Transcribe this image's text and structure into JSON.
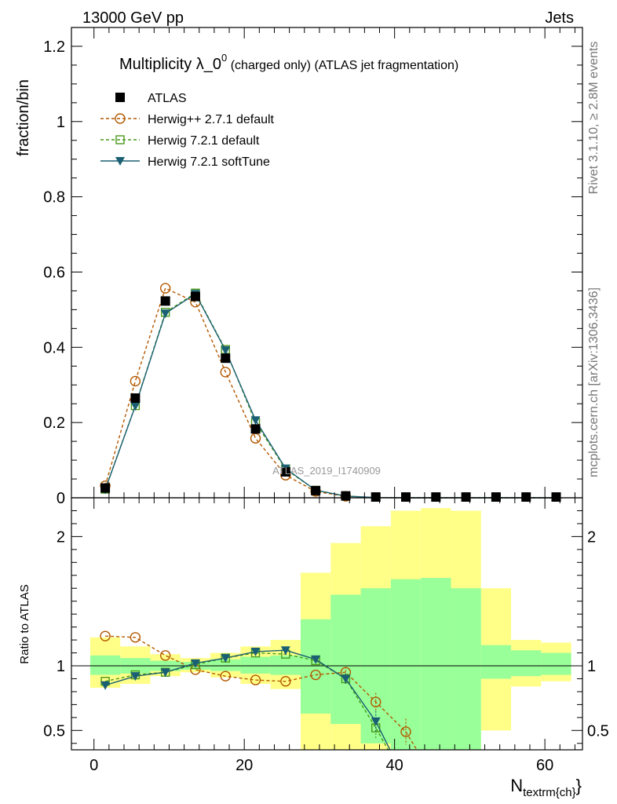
{
  "header": {
    "left": "13000 GeV pp",
    "right": "Jets"
  },
  "side_labels": {
    "top": "Rivet 3.1.10, ≥ 2.8M events",
    "bottom": "mcplots.cern.ch [arXiv:1306.3436]"
  },
  "watermark": "ATLAS_2019_I1740909",
  "chart_data": [
    {
      "type": "line",
      "panel": "main",
      "title_main": "Multiplicity λ_0",
      "title_sup": "0",
      "title_rest": " (charged only) (ATLAS jet fragmentation)",
      "xlabel_main": "N",
      "xlabel_sub": "textrm{ch}",
      "xlabel_close": "}",
      "ylabel": "fraction/bin",
      "xlim": [
        -3,
        65
      ],
      "ylim": [
        0,
        1.25
      ],
      "x_ticks": [
        0,
        20,
        40,
        60
      ],
      "x_tick_labels": [
        "0",
        "20",
        "40",
        "60"
      ],
      "y_ticks": [
        0,
        0.2,
        0.4,
        0.6,
        0.8,
        1,
        1.2
      ],
      "y_tick_labels": [
        "0",
        "0.2",
        "0.4",
        "0.6",
        "0.8",
        "1",
        "1.2"
      ],
      "grid": false,
      "legend_position": "top-left",
      "x": [
        1.5,
        5.5,
        9.5,
        13.5,
        17.5,
        21.5,
        25.5,
        29.5,
        33.5,
        37.5,
        41.5,
        45.5,
        49.5,
        53.5,
        57.5,
        61.5
      ],
      "series": [
        {
          "name": "ATLAS",
          "color": "#000000",
          "marker": "square-filled",
          "line": "none",
          "values": [
            0.026,
            0.265,
            0.523,
            0.535,
            0.371,
            0.183,
            0.069,
            0.019,
            0.005,
            0.001,
            0.0003,
            0.0001,
            0.0001,
            0.0001,
            0.0001,
            0.0001
          ]
        },
        {
          "name": "Herwig++ 2.7.1 default",
          "color": "#b35900",
          "marker": "circle-open",
          "line": "dashed",
          "values": [
            0.032,
            0.31,
            0.557,
            0.52,
            0.334,
            0.158,
            0.06,
            0.017,
            0.004,
            0.0006,
            0.0001,
            0.0,
            0.0,
            0.0,
            0.0,
            0.0
          ]
        },
        {
          "name": "Herwig 7.2.1 default",
          "color": "#4a9a1a",
          "marker": "square-open",
          "line": "dashed",
          "values": [
            0.023,
            0.245,
            0.493,
            0.544,
            0.394,
            0.2,
            0.076,
            0.02,
            0.0045,
            0.0005,
            0.0,
            0.0,
            0.0,
            0.0,
            0.0,
            0.0
          ]
        },
        {
          "name": "Herwig 7.2.1 softTune",
          "color": "#1a5f73",
          "marker": "triangle-down-filled",
          "line": "solid",
          "values": [
            0.022,
            0.244,
            0.49,
            0.542,
            0.392,
            0.206,
            0.078,
            0.02,
            0.0045,
            0.0006,
            0.0,
            0.0,
            0.0,
            0.0,
            0.0,
            0.0
          ]
        }
      ]
    },
    {
      "type": "line",
      "panel": "ratio",
      "ylabel": "Ratio to ATLAS",
      "xlim": [
        -3,
        65
      ],
      "ylim": [
        0.35,
        2.3
      ],
      "y_ticks": [
        0.5,
        1,
        2
      ],
      "y_tick_labels": [
        "0.5",
        "1",
        "2"
      ],
      "reference": 1,
      "bins": [
        [
          -0.5,
          3.5
        ],
        [
          3.5,
          7.5
        ],
        [
          7.5,
          11.5
        ],
        [
          11.5,
          15.5
        ],
        [
          15.5,
          19.5
        ],
        [
          19.5,
          23.5
        ],
        [
          23.5,
          27.5
        ],
        [
          27.5,
          31.5
        ],
        [
          31.5,
          35.5
        ],
        [
          35.5,
          39.5
        ],
        [
          39.5,
          43.5
        ],
        [
          43.5,
          47.5
        ],
        [
          47.5,
          51.5
        ],
        [
          51.5,
          55.5
        ],
        [
          55.5,
          59.5
        ],
        [
          59.5,
          63.5
        ]
      ],
      "band_total_yellow": [
        [
          0.83,
          1.22
        ],
        [
          0.86,
          1.15
        ],
        [
          0.92,
          1.09
        ],
        [
          0.95,
          1.06
        ],
        [
          0.91,
          1.1
        ],
        [
          0.86,
          1.15
        ],
        [
          0.82,
          1.2
        ],
        [
          0.32,
          1.72
        ],
        [
          0.15,
          1.95
        ],
        [
          0.15,
          2.08
        ],
        [
          0.15,
          2.2
        ],
        [
          0.15,
          2.22
        ],
        [
          0.15,
          2.2
        ],
        [
          0.5,
          1.6
        ],
        [
          0.84,
          1.2
        ],
        [
          0.88,
          1.18
        ]
      ],
      "band_stat_green": [
        [
          0.93,
          1.08
        ],
        [
          0.94,
          1.06
        ],
        [
          0.96,
          1.04
        ],
        [
          0.97,
          1.03
        ],
        [
          0.96,
          1.05
        ],
        [
          0.94,
          1.07
        ],
        [
          0.93,
          1.08
        ],
        [
          0.63,
          1.36
        ],
        [
          0.55,
          1.55
        ],
        [
          0.4,
          1.6
        ],
        [
          0.33,
          1.67
        ],
        [
          0.3,
          1.68
        ],
        [
          0.15,
          1.6
        ],
        [
          0.9,
          1.16
        ],
        [
          0.92,
          1.12
        ],
        [
          0.93,
          1.1
        ]
      ],
      "x": [
        1.5,
        5.5,
        9.5,
        13.5,
        17.5,
        21.5,
        25.5,
        29.5,
        33.5,
        37.5,
        41.5,
        45.5,
        49.5,
        53.5,
        57.5,
        61.5
      ],
      "series": [
        {
          "name": "Herwig++ 2.7.1 default",
          "color": "#b35900",
          "marker": "circle-open",
          "line": "dashed",
          "values": [
            1.23,
            1.22,
            1.08,
            0.97,
            0.92,
            0.89,
            0.88,
            0.93,
            0.95,
            0.72,
            0.49,
            0.1,
            null,
            null,
            null,
            null
          ],
          "errors": [
            0,
            0,
            0,
            0,
            0,
            0,
            0,
            0,
            0.04,
            0.07,
            0.1,
            0,
            0,
            0,
            0,
            0
          ]
        },
        {
          "name": "Herwig 7.2.1 default",
          "color": "#4a9a1a",
          "marker": "square-open",
          "line": "dashed",
          "values": [
            0.88,
            0.93,
            0.95,
            1.01,
            1.06,
            1.1,
            1.09,
            1.04,
            0.9,
            0.52,
            0.1,
            null,
            null,
            null,
            null,
            null
          ],
          "errors": [
            0,
            0,
            0,
            0,
            0,
            0,
            0,
            0.02,
            0.04,
            0.08,
            0,
            0,
            0,
            0,
            0,
            0
          ]
        },
        {
          "name": "Herwig 7.2.1 softTune",
          "color": "#1a5f73",
          "marker": "triangle-down-filled",
          "line": "solid",
          "values": [
            0.85,
            0.92,
            0.95,
            1.02,
            1.06,
            1.11,
            1.12,
            1.05,
            0.9,
            0.57,
            0.1,
            null,
            null,
            null,
            null,
            null
          ],
          "errors": [
            0,
            0,
            0,
            0,
            0,
            0,
            0,
            0.02,
            0.04,
            0.08,
            0,
            0,
            0,
            0,
            0,
            0
          ]
        }
      ]
    }
  ]
}
